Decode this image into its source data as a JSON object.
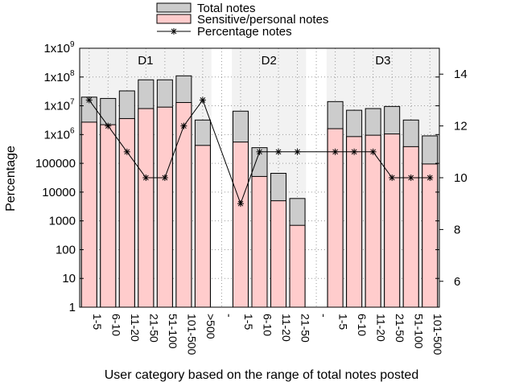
{
  "chart_data": {
    "type": "bar",
    "xlabel": "User category based on the range of total notes posted",
    "ylabel": "Percentage",
    "y_scale": "log",
    "ylim": [
      1,
      1000000000
    ],
    "y2lim": [
      5,
      15
    ],
    "grid": true,
    "legend_placement": "top",
    "y_tick_labels": [
      "1",
      "10",
      "100",
      "1000",
      "10000",
      "100000",
      "1x10",
      "1x10",
      "1x10",
      "1x10"
    ],
    "y_tick_exponents": [
      "",
      "",
      "",
      "",
      "",
      "",
      "6",
      "7",
      "8",
      "9"
    ],
    "y2_tick_labels": [
      "6",
      "8",
      "10",
      "12",
      "14"
    ],
    "series": [
      {
        "name": "Total notes",
        "color": "#cccccc"
      },
      {
        "name": "Sensitive/personal notes",
        "color": "#ffcccc"
      },
      {
        "name": "Percentage notes",
        "color": "#000000",
        "marker": "asterisk",
        "axis": "right"
      }
    ],
    "groups": [
      {
        "label": "D1",
        "categories": [
          "1-5",
          "6-10",
          "11-20",
          "21-50",
          "51-100",
          "101-500",
          ">500"
        ],
        "total": [
          20000000,
          18000000,
          33000000,
          80000000,
          80000000,
          110000000,
          3200000
        ],
        "sensitive": [
          2700000,
          2200000,
          3600000,
          8000000,
          9000000,
          13000000,
          420000
        ],
        "percentage": [
          13,
          12,
          11,
          10,
          10,
          12,
          13
        ]
      },
      {
        "label": "D2",
        "categories": [
          "1-5",
          "6-10",
          "11-20",
          "21-50"
        ],
        "total": [
          6500000,
          350000,
          45000,
          6000
        ],
        "sensitive": [
          550000,
          35000,
          5000,
          700
        ],
        "percentage": [
          9,
          11,
          11,
          11
        ]
      },
      {
        "label": "D3",
        "categories": [
          "1-5",
          "6-10",
          "11-20",
          "21-50",
          "51-100",
          "101-500"
        ],
        "total": [
          14000000,
          7000000,
          8000000,
          9500000,
          3200000,
          900000
        ],
        "sensitive": [
          1600000,
          850000,
          950000,
          1050000,
          380000,
          95000
        ],
        "percentage": [
          11,
          11,
          11,
          10,
          10,
          10
        ]
      }
    ],
    "separator_label": "-"
  }
}
